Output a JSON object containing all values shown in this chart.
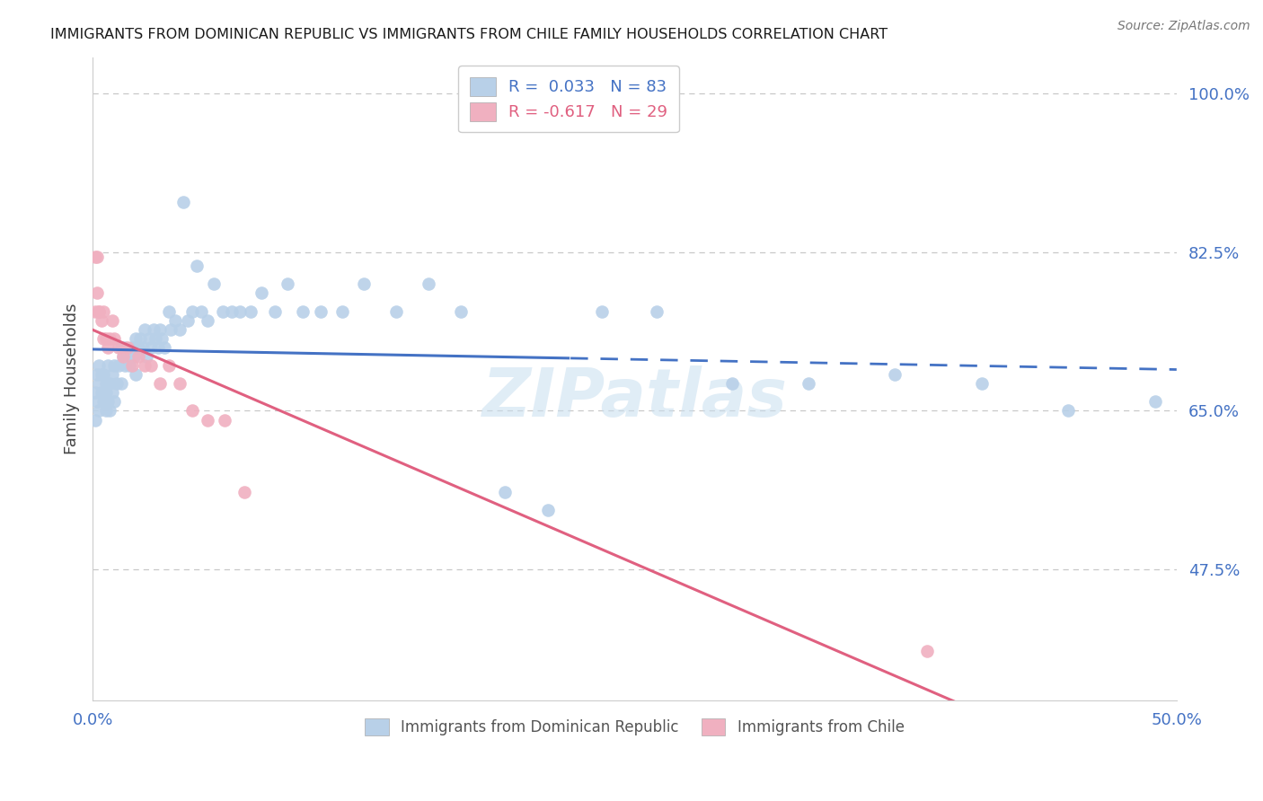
{
  "title": "IMMIGRANTS FROM DOMINICAN REPUBLIC VS IMMIGRANTS FROM CHILE FAMILY HOUSEHOLDS CORRELATION CHART",
  "source": "Source: ZipAtlas.com",
  "ylabel": "Family Households",
  "xlim": [
    0.0,
    0.5
  ],
  "ylim": [
    0.33,
    1.04
  ],
  "xtick_positions": [
    0.0,
    0.1,
    0.2,
    0.3,
    0.4,
    0.5
  ],
  "xticklabels": [
    "0.0%",
    "",
    "",
    "",
    "",
    "50.0%"
  ],
  "ytick_positions": [
    0.475,
    0.65,
    0.825,
    1.0
  ],
  "yticklabels": [
    "47.5%",
    "65.0%",
    "82.5%",
    "100.0%"
  ],
  "grid_color": "#c8c8c8",
  "background_color": "#ffffff",
  "blue_dot_color": "#b8d0e8",
  "pink_dot_color": "#f0b0c0",
  "blue_line_color": "#4472c4",
  "pink_line_color": "#e06080",
  "R_blue": 0.033,
  "N_blue": 83,
  "R_pink": -0.617,
  "N_pink": 29,
  "legend_label_blue_bottom": "Immigrants from Dominican Republic",
  "legend_label_pink_bottom": "Immigrants from Chile",
  "blue_line_solid_end": 0.22,
  "blue_x": [
    0.001,
    0.001,
    0.002,
    0.002,
    0.003,
    0.003,
    0.003,
    0.004,
    0.004,
    0.005,
    0.005,
    0.006,
    0.006,
    0.006,
    0.007,
    0.007,
    0.008,
    0.008,
    0.009,
    0.009,
    0.01,
    0.01,
    0.011,
    0.012,
    0.013,
    0.013,
    0.014,
    0.015,
    0.015,
    0.016,
    0.017,
    0.018,
    0.019,
    0.02,
    0.02,
    0.021,
    0.022,
    0.023,
    0.024,
    0.025,
    0.026,
    0.027,
    0.028,
    0.029,
    0.03,
    0.031,
    0.032,
    0.033,
    0.035,
    0.036,
    0.038,
    0.04,
    0.042,
    0.044,
    0.046,
    0.048,
    0.05,
    0.053,
    0.056,
    0.06,
    0.064,
    0.068,
    0.073,
    0.078,
    0.084,
    0.09,
    0.097,
    0.105,
    0.115,
    0.125,
    0.14,
    0.155,
    0.17,
    0.19,
    0.21,
    0.235,
    0.26,
    0.295,
    0.33,
    0.37,
    0.41,
    0.45,
    0.49
  ],
  "blue_y": [
    0.64,
    0.67,
    0.66,
    0.69,
    0.65,
    0.68,
    0.7,
    0.67,
    0.69,
    0.66,
    0.69,
    0.67,
    0.65,
    0.68,
    0.66,
    0.7,
    0.65,
    0.68,
    0.67,
    0.69,
    0.7,
    0.66,
    0.68,
    0.7,
    0.72,
    0.68,
    0.71,
    0.7,
    0.72,
    0.71,
    0.7,
    0.72,
    0.71,
    0.73,
    0.69,
    0.72,
    0.73,
    0.72,
    0.74,
    0.71,
    0.73,
    0.72,
    0.74,
    0.73,
    0.72,
    0.74,
    0.73,
    0.72,
    0.76,
    0.74,
    0.75,
    0.74,
    0.88,
    0.75,
    0.76,
    0.81,
    0.76,
    0.75,
    0.79,
    0.76,
    0.76,
    0.76,
    0.76,
    0.78,
    0.76,
    0.79,
    0.76,
    0.76,
    0.76,
    0.79,
    0.76,
    0.79,
    0.76,
    0.56,
    0.54,
    0.76,
    0.76,
    0.68,
    0.68,
    0.69,
    0.68,
    0.65,
    0.66
  ],
  "pink_x": [
    0.001,
    0.001,
    0.002,
    0.002,
    0.003,
    0.003,
    0.004,
    0.005,
    0.005,
    0.006,
    0.007,
    0.008,
    0.009,
    0.01,
    0.012,
    0.014,
    0.016,
    0.018,
    0.021,
    0.024,
    0.027,
    0.031,
    0.035,
    0.04,
    0.046,
    0.053,
    0.061,
    0.07,
    0.385
  ],
  "pink_y": [
    0.76,
    0.82,
    0.78,
    0.82,
    0.76,
    0.76,
    0.75,
    0.73,
    0.76,
    0.73,
    0.72,
    0.73,
    0.75,
    0.73,
    0.72,
    0.71,
    0.72,
    0.7,
    0.71,
    0.7,
    0.7,
    0.68,
    0.7,
    0.68,
    0.65,
    0.64,
    0.64,
    0.56,
    0.385
  ],
  "watermark": "ZIPatlas"
}
